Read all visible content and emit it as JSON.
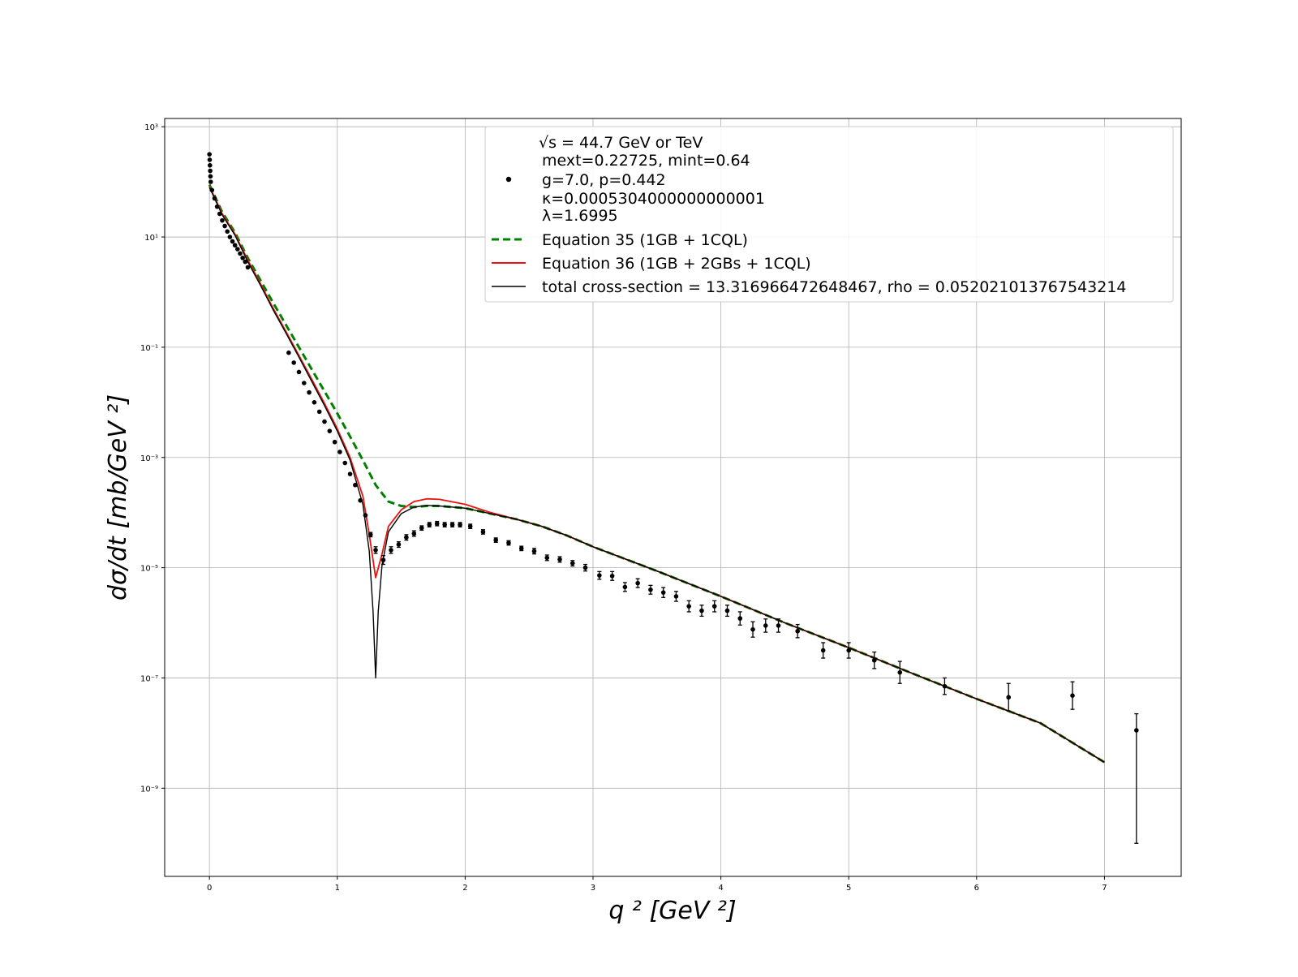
{
  "chart_data": {
    "type": "scatter",
    "title": "",
    "xlabel": "q ² [GeV ²]",
    "ylabel": "dσ/dt  [mb/GeV ²]",
    "xlim": [
      -0.35,
      7.6
    ],
    "ylim_log10": [
      -10.6,
      3.15
    ],
    "y_scale": "log",
    "grid": true,
    "legend_position": "top-right",
    "x_ticks": [
      0,
      1,
      2,
      3,
      4,
      5,
      6,
      7
    ],
    "x_tick_labels": [
      "0",
      "1",
      "2",
      "3",
      "4",
      "5",
      "6",
      "7"
    ],
    "y_ticks_log10": [
      3,
      1,
      -1,
      -3,
      -5,
      -7,
      -9
    ],
    "y_tick_labels": [
      "10³",
      "10¹",
      "10⁻¹",
      "10⁻³",
      "10⁻⁵",
      "10⁻⁷",
      "10⁻⁹"
    ],
    "legend": {
      "data_label_lines": [
        "√s = 44.7 GeV or TeV",
        "mext=0.22725, mint=0.64",
        "g=7.0, p=0.442",
        "κ=0.0005304000000000001",
        "λ=1.6995"
      ],
      "eq35_label": "Equation 35 (1GB + 1CQL)",
      "eq36_label": "Equation 36 (1GB + 2GBs + 1CQL)",
      "total_label": "total cross-section = 13.316966472648467, rho = 0.052021013767543214"
    },
    "series": [
      {
        "name": "Equation 35 (1GB + 1CQL)",
        "style": "dashed",
        "color": "#008000",
        "points": [
          [
            0,
            1.95
          ],
          [
            0.1,
            1.45
          ],
          [
            0.2,
            1.08
          ],
          [
            0.3,
            0.62
          ],
          [
            0.4,
            0.21
          ],
          [
            0.5,
            -0.2
          ],
          [
            0.6,
            -0.6
          ],
          [
            0.7,
            -1.0
          ],
          [
            0.8,
            -1.4
          ],
          [
            0.9,
            -1.8
          ],
          [
            1.0,
            -2.2
          ],
          [
            1.1,
            -2.62
          ],
          [
            1.2,
            -3.05
          ],
          [
            1.3,
            -3.5
          ],
          [
            1.4,
            -3.8
          ],
          [
            1.5,
            -3.88
          ],
          [
            1.6,
            -3.9
          ],
          [
            1.7,
            -3.88
          ],
          [
            1.8,
            -3.88
          ],
          [
            2.0,
            -3.92
          ],
          [
            2.2,
            -4.02
          ],
          [
            2.4,
            -4.12
          ],
          [
            2.6,
            -4.25
          ],
          [
            2.8,
            -4.42
          ],
          [
            3.0,
            -4.62
          ],
          [
            3.5,
            -5.06
          ],
          [
            4.0,
            -5.52
          ],
          [
            4.5,
            -6.0
          ],
          [
            5.0,
            -6.45
          ],
          [
            5.5,
            -6.92
          ],
          [
            6.0,
            -7.38
          ],
          [
            6.5,
            -7.82
          ],
          [
            7.0,
            -8.53
          ]
        ]
      },
      {
        "name": "Equation 36 (1GB + 2GBs + 1CQL)",
        "style": "solid",
        "color": "#e8140d",
        "points": [
          [
            0,
            1.92
          ],
          [
            0.1,
            1.42
          ],
          [
            0.2,
            1.05
          ],
          [
            0.3,
            0.58
          ],
          [
            0.4,
            0.15
          ],
          [
            0.5,
            -0.3
          ],
          [
            0.6,
            -0.72
          ],
          [
            0.7,
            -1.15
          ],
          [
            0.8,
            -1.58
          ],
          [
            0.9,
            -2.02
          ],
          [
            1.0,
            -2.48
          ],
          [
            1.1,
            -3.0
          ],
          [
            1.2,
            -3.7
          ],
          [
            1.25,
            -4.4
          ],
          [
            1.3,
            -5.18
          ],
          [
            1.35,
            -4.75
          ],
          [
            1.4,
            -4.25
          ],
          [
            1.5,
            -3.95
          ],
          [
            1.6,
            -3.8
          ],
          [
            1.7,
            -3.75
          ],
          [
            1.8,
            -3.76
          ],
          [
            2.0,
            -3.85
          ],
          [
            2.2,
            -4.0
          ],
          [
            2.4,
            -4.12
          ],
          [
            2.6,
            -4.25
          ],
          [
            2.8,
            -4.42
          ],
          [
            3.0,
            -4.62
          ],
          [
            3.5,
            -5.06
          ],
          [
            4.0,
            -5.52
          ],
          [
            4.5,
            -6.0
          ],
          [
            5.0,
            -6.45
          ],
          [
            5.5,
            -6.92
          ],
          [
            6.0,
            -7.38
          ],
          [
            6.5,
            -7.82
          ],
          [
            7.0,
            -8.53
          ]
        ]
      },
      {
        "name": "total cross-section = 13.316966472648467, rho = 0.052021013767543214",
        "style": "solid",
        "color": "#000000",
        "points": [
          [
            0,
            1.9
          ],
          [
            0.1,
            1.4
          ],
          [
            0.2,
            1.03
          ],
          [
            0.3,
            0.55
          ],
          [
            0.4,
            0.12
          ],
          [
            0.5,
            -0.33
          ],
          [
            0.6,
            -0.75
          ],
          [
            0.7,
            -1.18
          ],
          [
            0.8,
            -1.62
          ],
          [
            0.9,
            -2.06
          ],
          [
            1.0,
            -2.52
          ],
          [
            1.1,
            -3.05
          ],
          [
            1.2,
            -3.85
          ],
          [
            1.25,
            -4.7
          ],
          [
            1.28,
            -5.8
          ],
          [
            1.3,
            -7.0
          ],
          [
            1.32,
            -5.8
          ],
          [
            1.35,
            -4.95
          ],
          [
            1.4,
            -4.35
          ],
          [
            1.5,
            -4.02
          ],
          [
            1.6,
            -3.9
          ],
          [
            1.7,
            -3.87
          ],
          [
            1.8,
            -3.88
          ],
          [
            2.0,
            -3.92
          ],
          [
            2.2,
            -4.02
          ],
          [
            2.4,
            -4.12
          ],
          [
            2.6,
            -4.25
          ],
          [
            2.8,
            -4.42
          ],
          [
            3.0,
            -4.62
          ],
          [
            3.5,
            -5.06
          ],
          [
            4.0,
            -5.52
          ],
          [
            4.5,
            -6.0
          ],
          [
            5.0,
            -6.45
          ],
          [
            5.5,
            -6.92
          ],
          [
            6.0,
            -7.38
          ],
          [
            6.5,
            -7.82
          ],
          [
            7.0,
            -8.53
          ]
        ]
      }
    ],
    "data_points": [
      [
        0.0,
        2.5,
        0,
        0
      ],
      [
        0.002,
        2.4,
        0,
        0
      ],
      [
        0.004,
        2.3,
        0,
        0
      ],
      [
        0.006,
        2.2,
        0,
        0
      ],
      [
        0.008,
        2.1,
        0,
        0
      ],
      [
        0.01,
        2.0,
        0,
        0
      ],
      [
        0.02,
        1.85,
        0,
        0
      ],
      [
        0.04,
        1.7,
        0,
        0
      ],
      [
        0.06,
        1.55,
        0,
        0
      ],
      [
        0.08,
        1.42,
        0,
        0
      ],
      [
        0.1,
        1.3,
        0,
        0
      ],
      [
        0.12,
        1.2,
        0,
        0
      ],
      [
        0.14,
        1.1,
        0,
        0
      ],
      [
        0.16,
        1.0,
        0,
        0
      ],
      [
        0.18,
        0.92,
        0,
        0
      ],
      [
        0.2,
        0.85,
        0,
        0
      ],
      [
        0.22,
        0.78,
        0,
        0
      ],
      [
        0.24,
        0.7,
        0,
        0
      ],
      [
        0.26,
        0.62,
        0,
        0
      ],
      [
        0.28,
        0.55,
        0,
        0
      ],
      [
        0.3,
        0.45,
        0,
        0
      ],
      [
        0.62,
        -1.1,
        0,
        0
      ],
      [
        0.66,
        -1.28,
        0,
        0
      ],
      [
        0.7,
        -1.45,
        0,
        0
      ],
      [
        0.74,
        -1.65,
        0,
        0
      ],
      [
        0.78,
        -1.82,
        0,
        0
      ],
      [
        0.82,
        -2.0,
        0,
        0
      ],
      [
        0.86,
        -2.17,
        0,
        0
      ],
      [
        0.9,
        -2.35,
        0,
        0
      ],
      [
        0.94,
        -2.52,
        0,
        0
      ],
      [
        0.98,
        -2.72,
        0,
        0
      ],
      [
        1.02,
        -2.9,
        0,
        0
      ],
      [
        1.06,
        -3.1,
        0,
        0
      ],
      [
        1.1,
        -3.3,
        0,
        0
      ],
      [
        1.14,
        -3.5,
        0,
        0
      ],
      [
        1.18,
        -3.78,
        0,
        0
      ],
      [
        1.22,
        -4.05,
        0,
        0
      ],
      [
        1.26,
        -4.4,
        0.04,
        0.04
      ],
      [
        1.3,
        -4.68,
        0.06,
        0.06
      ],
      [
        1.36,
        -4.86,
        0.08,
        0.08
      ],
      [
        1.42,
        -4.68,
        0.06,
        0.06
      ],
      [
        1.48,
        -4.58,
        0.05,
        0.05
      ],
      [
        1.54,
        -4.45,
        0.05,
        0.05
      ],
      [
        1.6,
        -4.38,
        0.05,
        0.05
      ],
      [
        1.66,
        -4.28,
        0.04,
        0.04
      ],
      [
        1.72,
        -4.22,
        0.04,
        0.04
      ],
      [
        1.78,
        -4.2,
        0.04,
        0.04
      ],
      [
        1.84,
        -4.22,
        0.04,
        0.04
      ],
      [
        1.9,
        -4.22,
        0.04,
        0.04
      ],
      [
        1.96,
        -4.22,
        0.04,
        0.04
      ],
      [
        2.04,
        -4.25,
        0.04,
        0.04
      ],
      [
        2.14,
        -4.35,
        0.04,
        0.04
      ],
      [
        2.24,
        -4.5,
        0.04,
        0.04
      ],
      [
        2.34,
        -4.55,
        0.04,
        0.04
      ],
      [
        2.44,
        -4.65,
        0.04,
        0.04
      ],
      [
        2.54,
        -4.7,
        0.05,
        0.05
      ],
      [
        2.64,
        -4.82,
        0.05,
        0.05
      ],
      [
        2.74,
        -4.85,
        0.05,
        0.05
      ],
      [
        2.84,
        -4.92,
        0.05,
        0.05
      ],
      [
        2.94,
        -5.0,
        0.06,
        0.06
      ],
      [
        3.05,
        -5.14,
        0.07,
        0.07
      ],
      [
        3.15,
        -5.15,
        0.08,
        0.08
      ],
      [
        3.25,
        -5.35,
        0.08,
        0.08
      ],
      [
        3.35,
        -5.28,
        0.08,
        0.08
      ],
      [
        3.45,
        -5.4,
        0.08,
        0.08
      ],
      [
        3.55,
        -5.45,
        0.09,
        0.09
      ],
      [
        3.65,
        -5.52,
        0.09,
        0.09
      ],
      [
        3.75,
        -5.7,
        0.1,
        0.1
      ],
      [
        3.85,
        -5.78,
        0.1,
        0.1
      ],
      [
        3.95,
        -5.7,
        0.1,
        0.1
      ],
      [
        4.05,
        -5.78,
        0.1,
        0.1
      ],
      [
        4.15,
        -5.92,
        0.12,
        0.12
      ],
      [
        4.25,
        -6.12,
        0.14,
        0.14
      ],
      [
        4.35,
        -6.05,
        0.12,
        0.12
      ],
      [
        4.45,
        -6.05,
        0.12,
        0.12
      ],
      [
        4.6,
        -6.15,
        0.12,
        0.12
      ],
      [
        4.8,
        -6.5,
        0.14,
        0.14
      ],
      [
        5.0,
        -6.5,
        0.14,
        0.14
      ],
      [
        5.2,
        -6.68,
        0.15,
        0.15
      ],
      [
        5.4,
        -6.9,
        0.2,
        0.2
      ],
      [
        5.75,
        -7.15,
        0.15,
        0.15
      ],
      [
        6.25,
        -7.35,
        0.25,
        0.25
      ],
      [
        6.75,
        -7.32,
        0.25,
        0.25
      ],
      [
        7.25,
        -7.95,
        0.3,
        2.05
      ]
    ]
  }
}
